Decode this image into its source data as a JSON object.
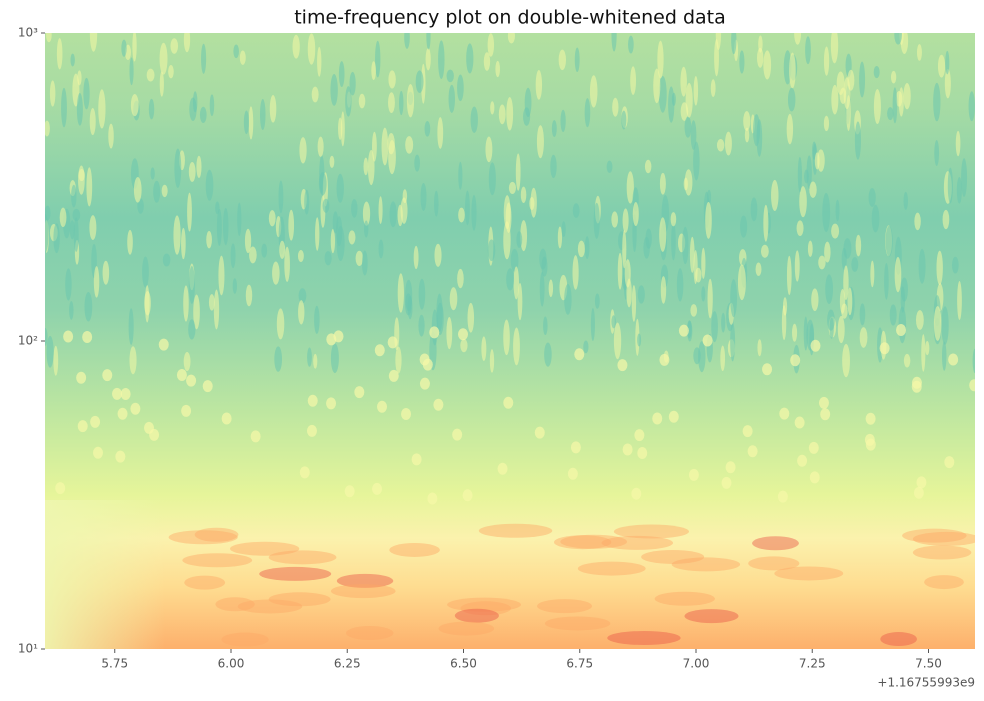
{
  "chart_data": {
    "type": "spectrogram",
    "title": "time-frequency plot on double-whitened data",
    "xlim": [
      5.6,
      7.6
    ],
    "xticks": [
      5.75,
      {
        "value": 6,
        "label": "6.00"
      },
      6.25,
      {
        "value": 6.5,
        "label": "6.50"
      },
      6.75,
      {
        "value": 7,
        "label": "7.00"
      },
      7.25,
      {
        "value": 7.5,
        "label": "7.50"
      }
    ],
    "x_offset_label": "+1.16755993e9",
    "ylim": [
      10,
      1000
    ],
    "yticks": [
      {
        "value": 10,
        "label": "10¹"
      },
      {
        "value": 100,
        "label": "10²"
      },
      {
        "value": 1000,
        "label": "10³"
      }
    ],
    "yscale": "log",
    "colormap": "Spectral"
  }
}
